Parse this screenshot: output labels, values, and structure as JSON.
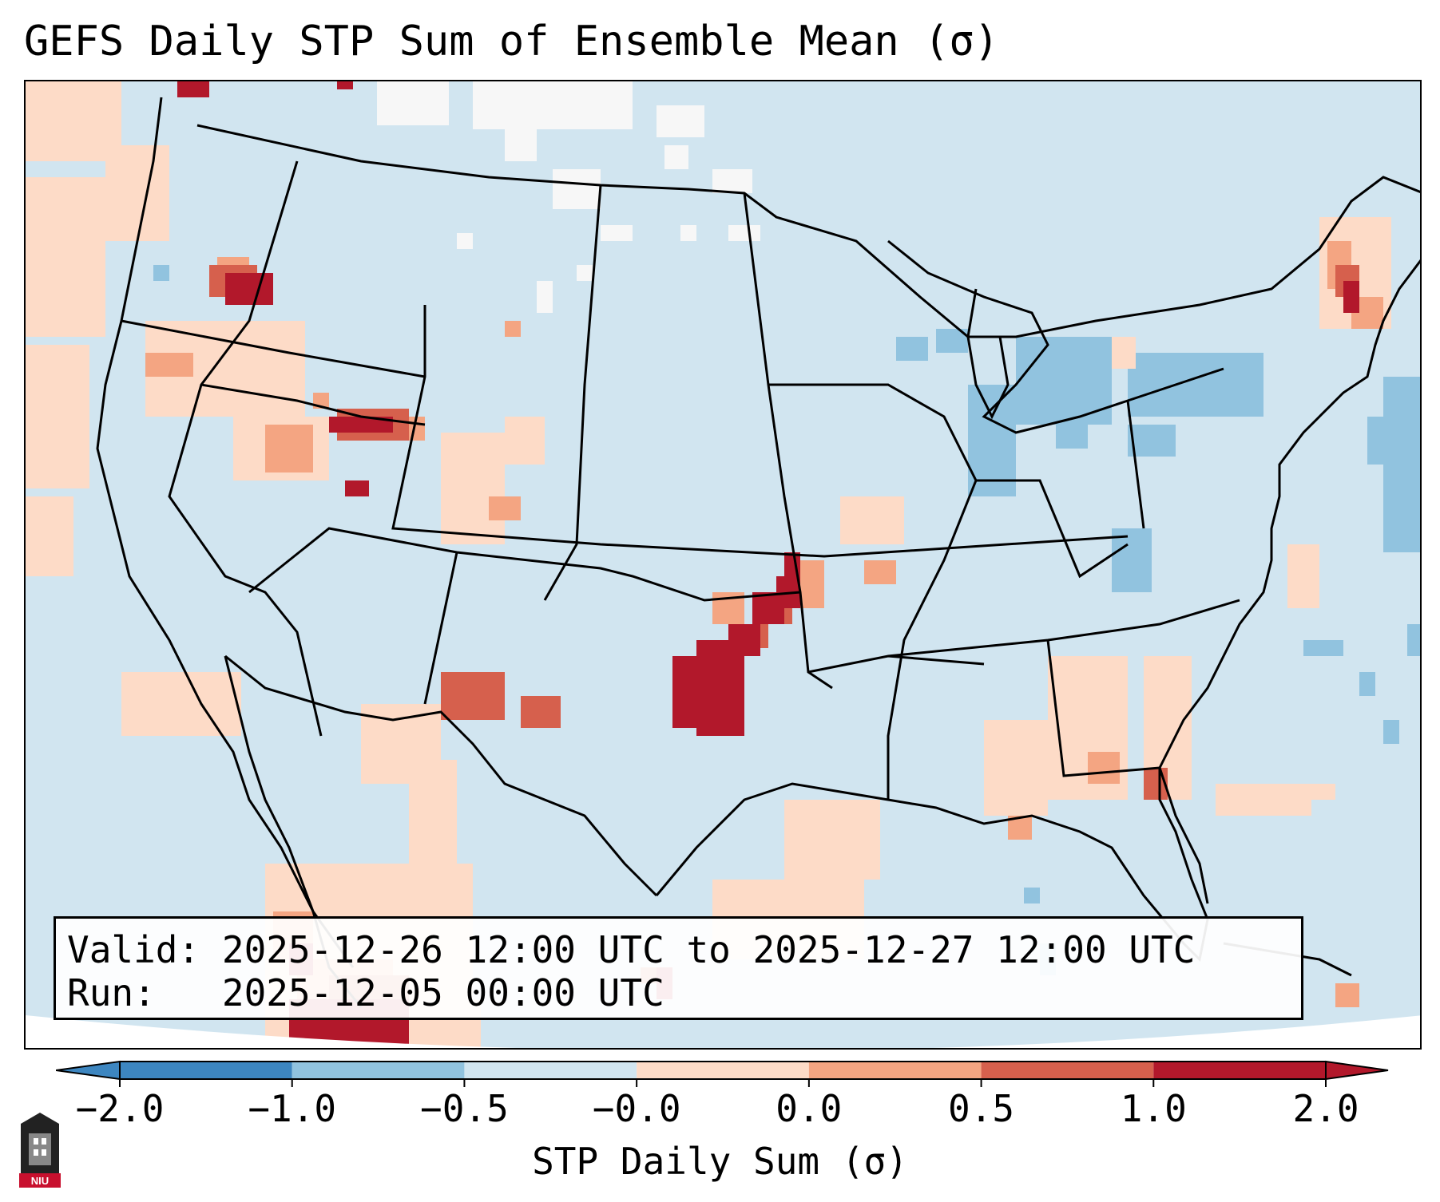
{
  "title": "GEFS Daily STP Sum of Ensemble Mean (σ)",
  "info": {
    "valid_label": "Valid:",
    "valid_value": "2025-12-26 12:00 UTC to 2025-12-27 12:00 UTC",
    "run_label": "Run:",
    "run_value": "2025-12-05 00:00 UTC"
  },
  "colorbar": {
    "label": "STP Daily Sum (σ)",
    "ticks": [
      "−2.0",
      "−1.0",
      "−0.5",
      "−0.0",
      "0.0",
      "0.5",
      "1.0",
      "2.0"
    ],
    "colors": [
      "#3d86c0",
      "#91c3df",
      "#d1e5f0",
      "#f7f7f7",
      "#fddbc7",
      "#f4a582",
      "#d6604d",
      "#b2182b"
    ]
  },
  "map": {
    "region": "Contiguous United States",
    "background_color": "#d1e5f0",
    "features": [
      {
        "name": "Tornado-favorable corridor Oklahoma–Kansas",
        "value_sigma": 2.0
      },
      {
        "name": "Pacific Northwest / Idaho",
        "value_sigma": 1.5
      },
      {
        "name": "New Mexico / West Texas",
        "value_sigma": 1.0
      },
      {
        "name": "Great Lakes",
        "value_sigma": -1.0
      }
    ]
  },
  "logo": {
    "text": "NIU",
    "color": "#c8102e"
  }
}
